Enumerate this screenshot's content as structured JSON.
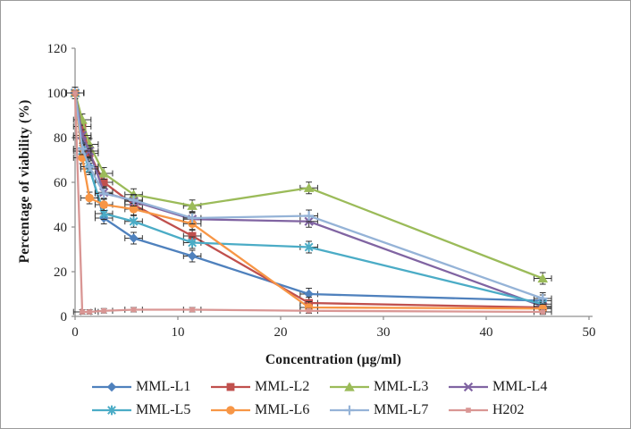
{
  "chart_data": {
    "type": "line",
    "title": "",
    "xlabel": "Concentration (µg/ml)",
    "ylabel": "Percentage of viability (%)",
    "xlim": [
      0,
      50
    ],
    "ylim": [
      0,
      120
    ],
    "x_ticks": [
      0,
      10,
      20,
      30,
      40,
      50
    ],
    "y_ticks": [
      0,
      20,
      40,
      60,
      80,
      100,
      120
    ],
    "grid": false,
    "legend_position": "bottom",
    "x": [
      0,
      0.7,
      1.4,
      2.8,
      5.7,
      11.4,
      22.75,
      45.5
    ],
    "error_x_units": 0.85,
    "series": [
      {
        "name": "MML-L1",
        "color": "#4F81BD",
        "marker": "diamond",
        "y_err_pct": 2.6,
        "values": [
          100,
          80,
          67,
          44,
          35,
          27,
          10,
          7
        ]
      },
      {
        "name": "MML-L2",
        "color": "#C0504D",
        "marker": "square",
        "y_err_pct": 2.6,
        "values": [
          100,
          85,
          73,
          60,
          50,
          36,
          6,
          4
        ]
      },
      {
        "name": "MML-L3",
        "color": "#9BBB59",
        "marker": "triangle",
        "y_err_pct": 2.6,
        "values": [
          100,
          88,
          77,
          64,
          54.5,
          49.5,
          57.5,
          17
        ]
      },
      {
        "name": "MML-L4",
        "color": "#8064A2",
        "marker": "x",
        "y_err_pct": 2.6,
        "values": [
          100,
          81,
          74,
          55.5,
          51.5,
          43.5,
          42.5,
          4.5
        ]
      },
      {
        "name": "MML-L5",
        "color": "#4BACC6",
        "marker": "asterisk",
        "y_err_pct": 2.6,
        "values": [
          100,
          74,
          66,
          46,
          42.5,
          33,
          31,
          5.5
        ]
      },
      {
        "name": "MML-L6",
        "color": "#F79646",
        "marker": "circle",
        "y_err_pct": 2.6,
        "values": [
          100,
          71,
          53,
          50,
          48,
          41.5,
          4,
          3.5
        ]
      },
      {
        "name": "MML-L7",
        "color": "#95B3D7",
        "marker": "plus",
        "y_err_pct": 2.6,
        "values": [
          100,
          75,
          67,
          55,
          52,
          44,
          45,
          8
        ]
      },
      {
        "name": "H202",
        "color": "#D99694",
        "marker": "small-square",
        "y_err_pct": 1.0,
        "values": [
          100,
          2,
          2,
          2.5,
          3,
          3,
          2.5,
          2
        ]
      }
    ],
    "legend_rows": [
      [
        "MML-L1",
        "MML-L2",
        "MML-L3",
        "MML-L4"
      ],
      [
        "MML-L5",
        "MML-L6",
        "MML-L7",
        "H202"
      ]
    ]
  },
  "axes_style": {
    "axis_color": "#919191",
    "tick_label_color": "#262626",
    "error_bar_color": "#333333"
  }
}
